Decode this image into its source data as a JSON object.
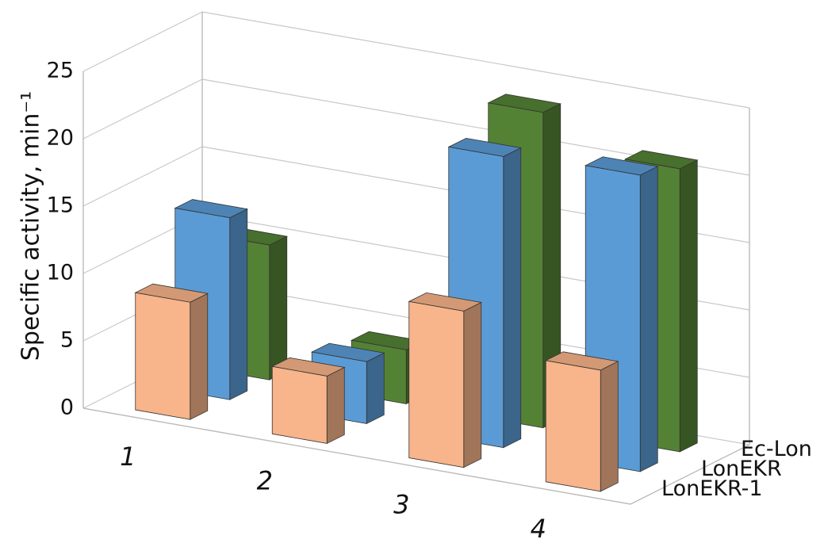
{
  "chart_data": {
    "type": "bar3d",
    "y_label": "Specific activity, min⁻¹",
    "categories": [
      "1",
      "2",
      "3",
      "4"
    ],
    "ylim": [
      0,
      25
    ],
    "yticks": [
      0,
      5,
      10,
      15,
      20,
      25
    ],
    "grid": true,
    "series": [
      {
        "name": "LonEKR-1",
        "color": "#f8b48a",
        "values": [
          8.7,
          5,
          11.6,
          9
        ]
      },
      {
        "name": "LonEKR",
        "color": "#5b9bd5",
        "values": [
          13.5,
          4.6,
          21.6,
          22
        ]
      },
      {
        "name": "Ec-Lon",
        "color": "#548235",
        "values": [
          10,
          4,
          23.4,
          21
        ]
      }
    ]
  }
}
